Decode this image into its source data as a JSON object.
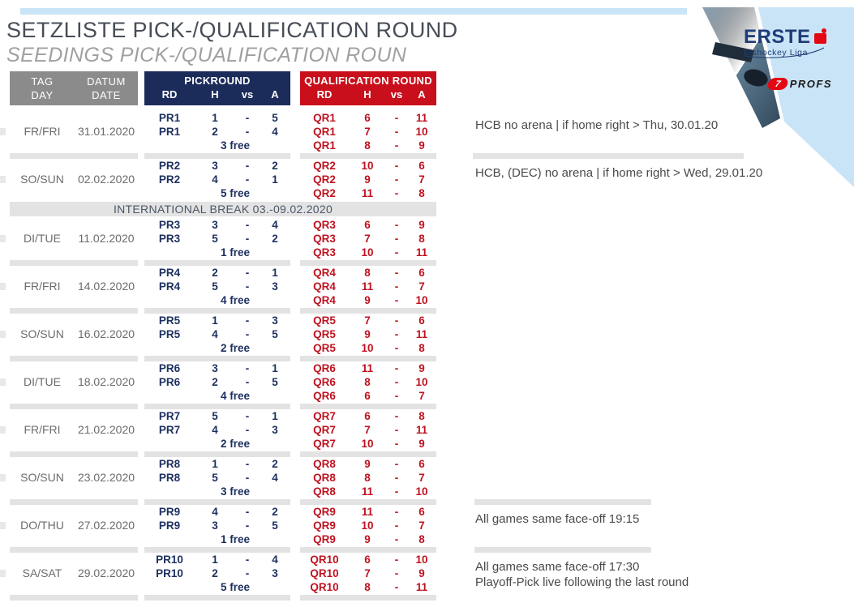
{
  "page_title": "SETZLISTE PICK-/QUALIFICATION ROUND",
  "page_subtitle": "SEEDINGS PICK-/QUALIFICATION ROUN",
  "brand": {
    "erste": "ERSTE",
    "erste_sub": "Eishockey Liga",
    "profs": "PROFS",
    "profs_seven": "7"
  },
  "colors": {
    "navy": "#1b2c5b",
    "red": "#c90f1b",
    "red_text": "#bf1220",
    "navy_text": "#1e3060",
    "header_gray": "#8b8b8b",
    "divider_gray": "#e3e3e3",
    "light_blue": "#c9e4f6",
    "erste_red": "#e30613"
  },
  "table": {
    "left_header": {
      "tag": "TAG",
      "day": "DAY",
      "datum": "DATUM",
      "date": "DATE"
    },
    "pick_header": {
      "title": "PICKROUND",
      "rd": "RD",
      "h": "H",
      "vs": "vs",
      "a": "A"
    },
    "qual_header": {
      "title": "QUALIFICATION ROUND",
      "rd": "RD",
      "h": "H",
      "vs": "vs",
      "a": "A"
    },
    "separator": "-",
    "break_banner": "INTERNATIONAL BREAK 03.-09.02.2020",
    "rows": [
      {
        "day": "FR/FRI",
        "date": "31.01.2020",
        "pick_games": [
          [
            "PR1",
            "1",
            "5"
          ],
          [
            "PR1",
            "2",
            "4"
          ]
        ],
        "pick_free": "3 free",
        "qual_games": [
          [
            "QR1",
            "6",
            "11"
          ],
          [
            "QR1",
            "7",
            "10"
          ],
          [
            "QR1",
            "8",
            "9"
          ]
        ],
        "note_lines": [
          "HCB no arena | if home right > Thu, 30.01.20"
        ],
        "note_bar_after": "long",
        "break_after": false
      },
      {
        "day": "SO/SUN",
        "date": "02.02.2020",
        "pick_games": [
          [
            "PR2",
            "3",
            "2"
          ],
          [
            "PR2",
            "4",
            "1"
          ]
        ],
        "pick_free": "5 free",
        "qual_games": [
          [
            "QR2",
            "10",
            "6"
          ],
          [
            "QR2",
            "9",
            "7"
          ],
          [
            "QR2",
            "11",
            "8"
          ]
        ],
        "note_lines": [
          "HCB, (DEC) no arena | if home right > Wed, 29.01.20"
        ],
        "note_bar_after": null,
        "break_after": true
      },
      {
        "day": "DI/TUE",
        "date": "11.02.2020",
        "pick_games": [
          [
            "PR3",
            "3",
            "4"
          ],
          [
            "PR3",
            "5",
            "2"
          ]
        ],
        "pick_free": "1 free",
        "qual_games": [
          [
            "QR3",
            "6",
            "9"
          ],
          [
            "QR3",
            "7",
            "8"
          ],
          [
            "QR3",
            "10",
            "11"
          ]
        ],
        "note_lines": [],
        "note_bar_after": null,
        "break_after": false
      },
      {
        "day": "FR/FRI",
        "date": "14.02.2020",
        "pick_games": [
          [
            "PR4",
            "2",
            "1"
          ],
          [
            "PR4",
            "5",
            "3"
          ]
        ],
        "pick_free": "4 free",
        "qual_games": [
          [
            "QR4",
            "8",
            "6"
          ],
          [
            "QR4",
            "11",
            "7"
          ],
          [
            "QR4",
            "9",
            "10"
          ]
        ],
        "note_lines": [],
        "note_bar_after": null,
        "break_after": false
      },
      {
        "day": "SO/SUN",
        "date": "16.02.2020",
        "pick_games": [
          [
            "PR5",
            "1",
            "3"
          ],
          [
            "PR5",
            "4",
            "5"
          ]
        ],
        "pick_free": "2 free",
        "qual_games": [
          [
            "QR5",
            "7",
            "6"
          ],
          [
            "QR5",
            "9",
            "11"
          ],
          [
            "QR5",
            "10",
            "8"
          ]
        ],
        "note_lines": [],
        "note_bar_after": null,
        "break_after": false
      },
      {
        "day": "DI/TUE",
        "date": "18.02.2020",
        "pick_games": [
          [
            "PR6",
            "3",
            "1"
          ],
          [
            "PR6",
            "2",
            "5"
          ]
        ],
        "pick_free": "4 free",
        "qual_games": [
          [
            "QR6",
            "11",
            "9"
          ],
          [
            "QR6",
            "8",
            "10"
          ],
          [
            "QR6",
            "6",
            "7"
          ]
        ],
        "note_lines": [],
        "note_bar_after": null,
        "break_after": false
      },
      {
        "day": "FR/FRI",
        "date": "21.02.2020",
        "pick_games": [
          [
            "PR7",
            "5",
            "1"
          ],
          [
            "PR7",
            "4",
            "3"
          ]
        ],
        "pick_free": "2 free",
        "qual_games": [
          [
            "QR7",
            "6",
            "8"
          ],
          [
            "QR7",
            "7",
            "11"
          ],
          [
            "QR7",
            "10",
            "9"
          ]
        ],
        "note_lines": [],
        "note_bar_after": null,
        "break_after": false
      },
      {
        "day": "SO/SUN",
        "date": "23.02.2020",
        "pick_games": [
          [
            "PR8",
            "1",
            "2"
          ],
          [
            "PR8",
            "5",
            "4"
          ]
        ],
        "pick_free": "3 free",
        "qual_games": [
          [
            "QR8",
            "9",
            "6"
          ],
          [
            "QR8",
            "8",
            "7"
          ],
          [
            "QR8",
            "11",
            "10"
          ]
        ],
        "note_lines": [],
        "note_bar_after": "short",
        "break_after": false
      },
      {
        "day": "DO/THU",
        "date": "27.02.2020",
        "pick_games": [
          [
            "PR9",
            "4",
            "2"
          ],
          [
            "PR9",
            "3",
            "5"
          ]
        ],
        "pick_free": "1 free",
        "qual_games": [
          [
            "QR9",
            "11",
            "6"
          ],
          [
            "QR9",
            "10",
            "7"
          ],
          [
            "QR9",
            "9",
            "8"
          ]
        ],
        "note_lines": [
          "All games same face-off 19:15"
        ],
        "note_bar_after": "short",
        "break_after": false
      },
      {
        "day": "SA/SAT",
        "date": "29.02.2020",
        "pick_games": [
          [
            "PR10",
            "1",
            "4"
          ],
          [
            "PR10",
            "2",
            "3"
          ]
        ],
        "pick_free": "5 free",
        "qual_games": [
          [
            "QR10",
            "6",
            "10"
          ],
          [
            "QR10",
            "7",
            "9"
          ],
          [
            "QR10",
            "8",
            "11"
          ]
        ],
        "note_lines": [
          "All games same face-off 17:30",
          "Playoff-Pick live following the last round"
        ],
        "note_bar_after": null,
        "break_after": false
      }
    ]
  }
}
